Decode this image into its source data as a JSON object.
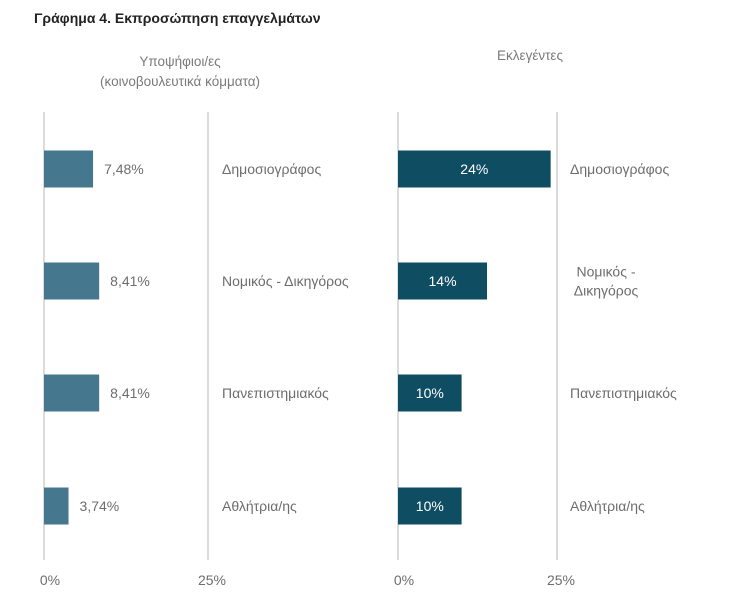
{
  "figure_title": "Γράφημα 4. Εκπροσώπηση επαγγελμάτων",
  "chart_data": [
    {
      "type": "bar",
      "orientation": "horizontal",
      "title_lines": [
        "Υποψήφιοι/ες",
        "(κοινοβουλευτικά κόμματα)"
      ],
      "categories": [
        "Δημοσιογράφος",
        "Νομικός - Δικηγόρος",
        "Πανεπιστημιακός",
        "Αθλήτρια/ης"
      ],
      "category_lines": [
        [
          "Δημοσιογράφος"
        ],
        [
          "Νομικός - Δικηγόρος"
        ],
        [
          "Πανεπιστημιακός"
        ],
        [
          "Αθλήτρια/ης"
        ]
      ],
      "values": [
        7.48,
        8.41,
        8.41,
        3.74
      ],
      "value_labels": [
        "7,48%",
        "8,41%",
        "8,41%",
        "3,74%"
      ],
      "label_position": "outside",
      "xlim": [
        0,
        25
      ],
      "tick_labels": [
        "0%",
        "25%"
      ],
      "color": "#45788e"
    },
    {
      "type": "bar",
      "orientation": "horizontal",
      "title_lines": [
        "Εκλεγέντες"
      ],
      "categories": [
        "Δημοσιογράφος",
        "Νομικός - Δικηγόρος",
        "Πανεπιστημιακός",
        "Αθλήτρια/ης"
      ],
      "category_lines": [
        [
          "Δημοσιογράφος"
        ],
        [
          "Νομικός -",
          "Δικηγόρος"
        ],
        [
          "Πανεπιστημιακός"
        ],
        [
          "Αθλήτρια/ης"
        ]
      ],
      "values": [
        24,
        14,
        10,
        10
      ],
      "value_labels": [
        "24%",
        "14%",
        "10%",
        "10%"
      ],
      "label_position": "inside",
      "xlim": [
        0,
        25
      ],
      "tick_labels": [
        "0%",
        "25%"
      ],
      "color": "#0f4d63"
    }
  ]
}
